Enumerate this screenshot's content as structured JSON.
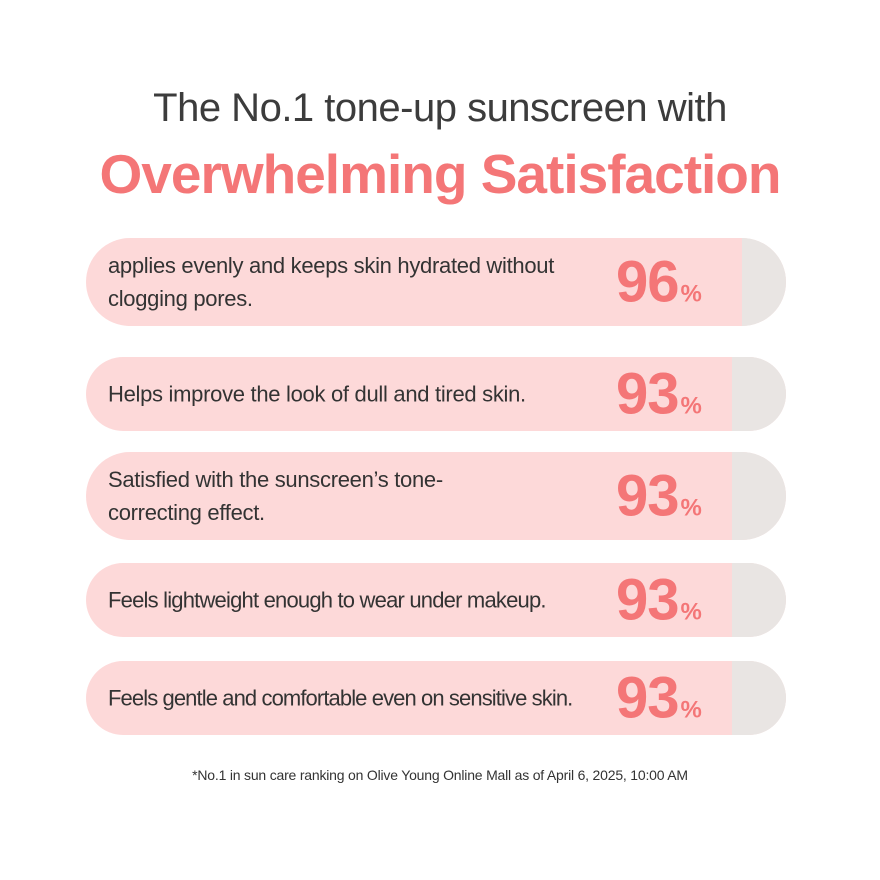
{
  "headline": "The No.1 tone-up sunscreen with",
  "accent_title": "Overwhelming Satisfaction",
  "colors": {
    "accent": "#f47677",
    "pill_background": "#fdd9d9",
    "pill_cap": "#e9e5e3",
    "text": "#333333"
  },
  "stats": [
    {
      "text": "applies evenly and keeps skin hydrated without clogging pores.",
      "value": "96",
      "unit": "%"
    },
    {
      "text": "Helps improve the look of dull and tired skin.",
      "value": "93",
      "unit": "%"
    },
    {
      "text": "Satisfied with the sunscreen’s tone-correcting effect.",
      "value": "93",
      "unit": "%"
    },
    {
      "text": "Feels lightweight enough to wear under makeup.",
      "value": "93",
      "unit": "%"
    },
    {
      "text": "Feels gentle and comfortable even on sensitive skin.",
      "value": "93",
      "unit": "%"
    }
  ],
  "footnote": "*No.1 in sun care ranking on Olive Young Online Mall  as of April 6, 2025, 10:00 AM"
}
